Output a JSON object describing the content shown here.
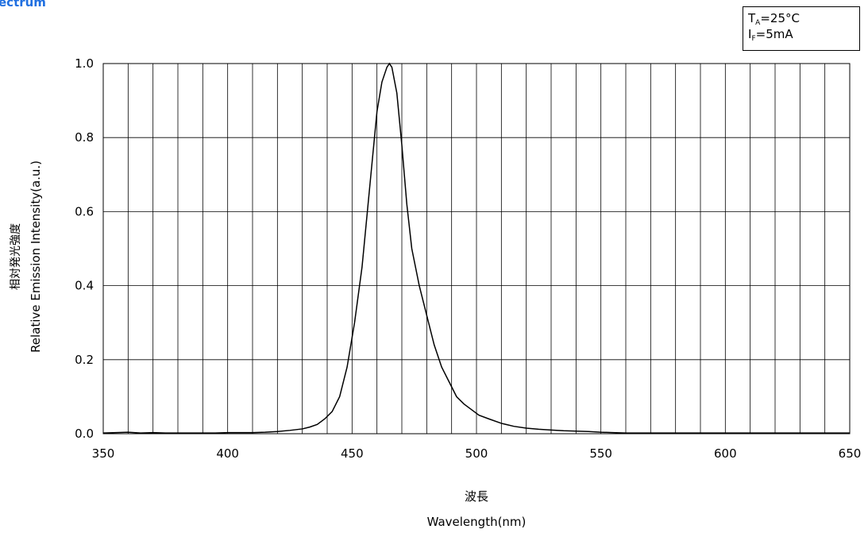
{
  "page": {
    "title": "ectrum"
  },
  "conditions": {
    "ta_symbol": "T",
    "ta_sub": "A",
    "ta_value": "=25°C",
    "if_symbol": "I",
    "if_sub": "F",
    "if_value": "=5mA"
  },
  "chart_data": {
    "type": "line",
    "xlabel_jp": "波長",
    "xlabel": "Wavelength(nm)",
    "ylabel_jp": "相対発光強度",
    "ylabel": "Relative Emission Intensity(a.u.)",
    "xlim": [
      350,
      650
    ],
    "ylim": [
      0.0,
      1.0
    ],
    "x_ticks": [
      350,
      400,
      450,
      500,
      550,
      600,
      650
    ],
    "x_tick_labels": [
      "350",
      "400",
      "450",
      "500",
      "550",
      "600",
      "650"
    ],
    "y_ticks": [
      0.0,
      0.2,
      0.4,
      0.6,
      0.8,
      1.0
    ],
    "y_tick_labels": [
      "0.0",
      "0.2",
      "0.4",
      "0.6",
      "0.8",
      "1.0"
    ],
    "x_minor_step": 10,
    "grid": true,
    "line_color": "#000000",
    "series": [
      {
        "x": [
          350,
          355,
          360,
          365,
          370,
          375,
          380,
          385,
          390,
          395,
          400,
          405,
          410,
          415,
          420,
          425,
          430,
          433,
          436,
          439,
          442,
          445,
          448,
          451,
          454,
          457,
          460,
          462,
          464,
          465,
          466,
          468,
          470,
          472,
          474,
          477,
          480,
          483,
          486,
          489,
          492,
          495,
          498,
          501,
          505,
          510,
          515,
          520,
          525,
          530,
          535,
          540,
          545,
          550,
          555,
          560,
          570,
          580,
          600,
          620,
          650
        ],
        "y": [
          0.002,
          0.003,
          0.004,
          0.002,
          0.003,
          0.002,
          0.002,
          0.002,
          0.002,
          0.002,
          0.003,
          0.003,
          0.003,
          0.004,
          0.006,
          0.009,
          0.013,
          0.018,
          0.025,
          0.04,
          0.06,
          0.1,
          0.18,
          0.3,
          0.45,
          0.66,
          0.87,
          0.95,
          0.99,
          1.0,
          0.99,
          0.92,
          0.78,
          0.62,
          0.5,
          0.4,
          0.32,
          0.24,
          0.18,
          0.14,
          0.1,
          0.08,
          0.065,
          0.05,
          0.04,
          0.028,
          0.02,
          0.015,
          0.012,
          0.01,
          0.008,
          0.007,
          0.006,
          0.004,
          0.003,
          0.002,
          0.002,
          0.002,
          0.002,
          0.002,
          0.002
        ]
      }
    ]
  }
}
